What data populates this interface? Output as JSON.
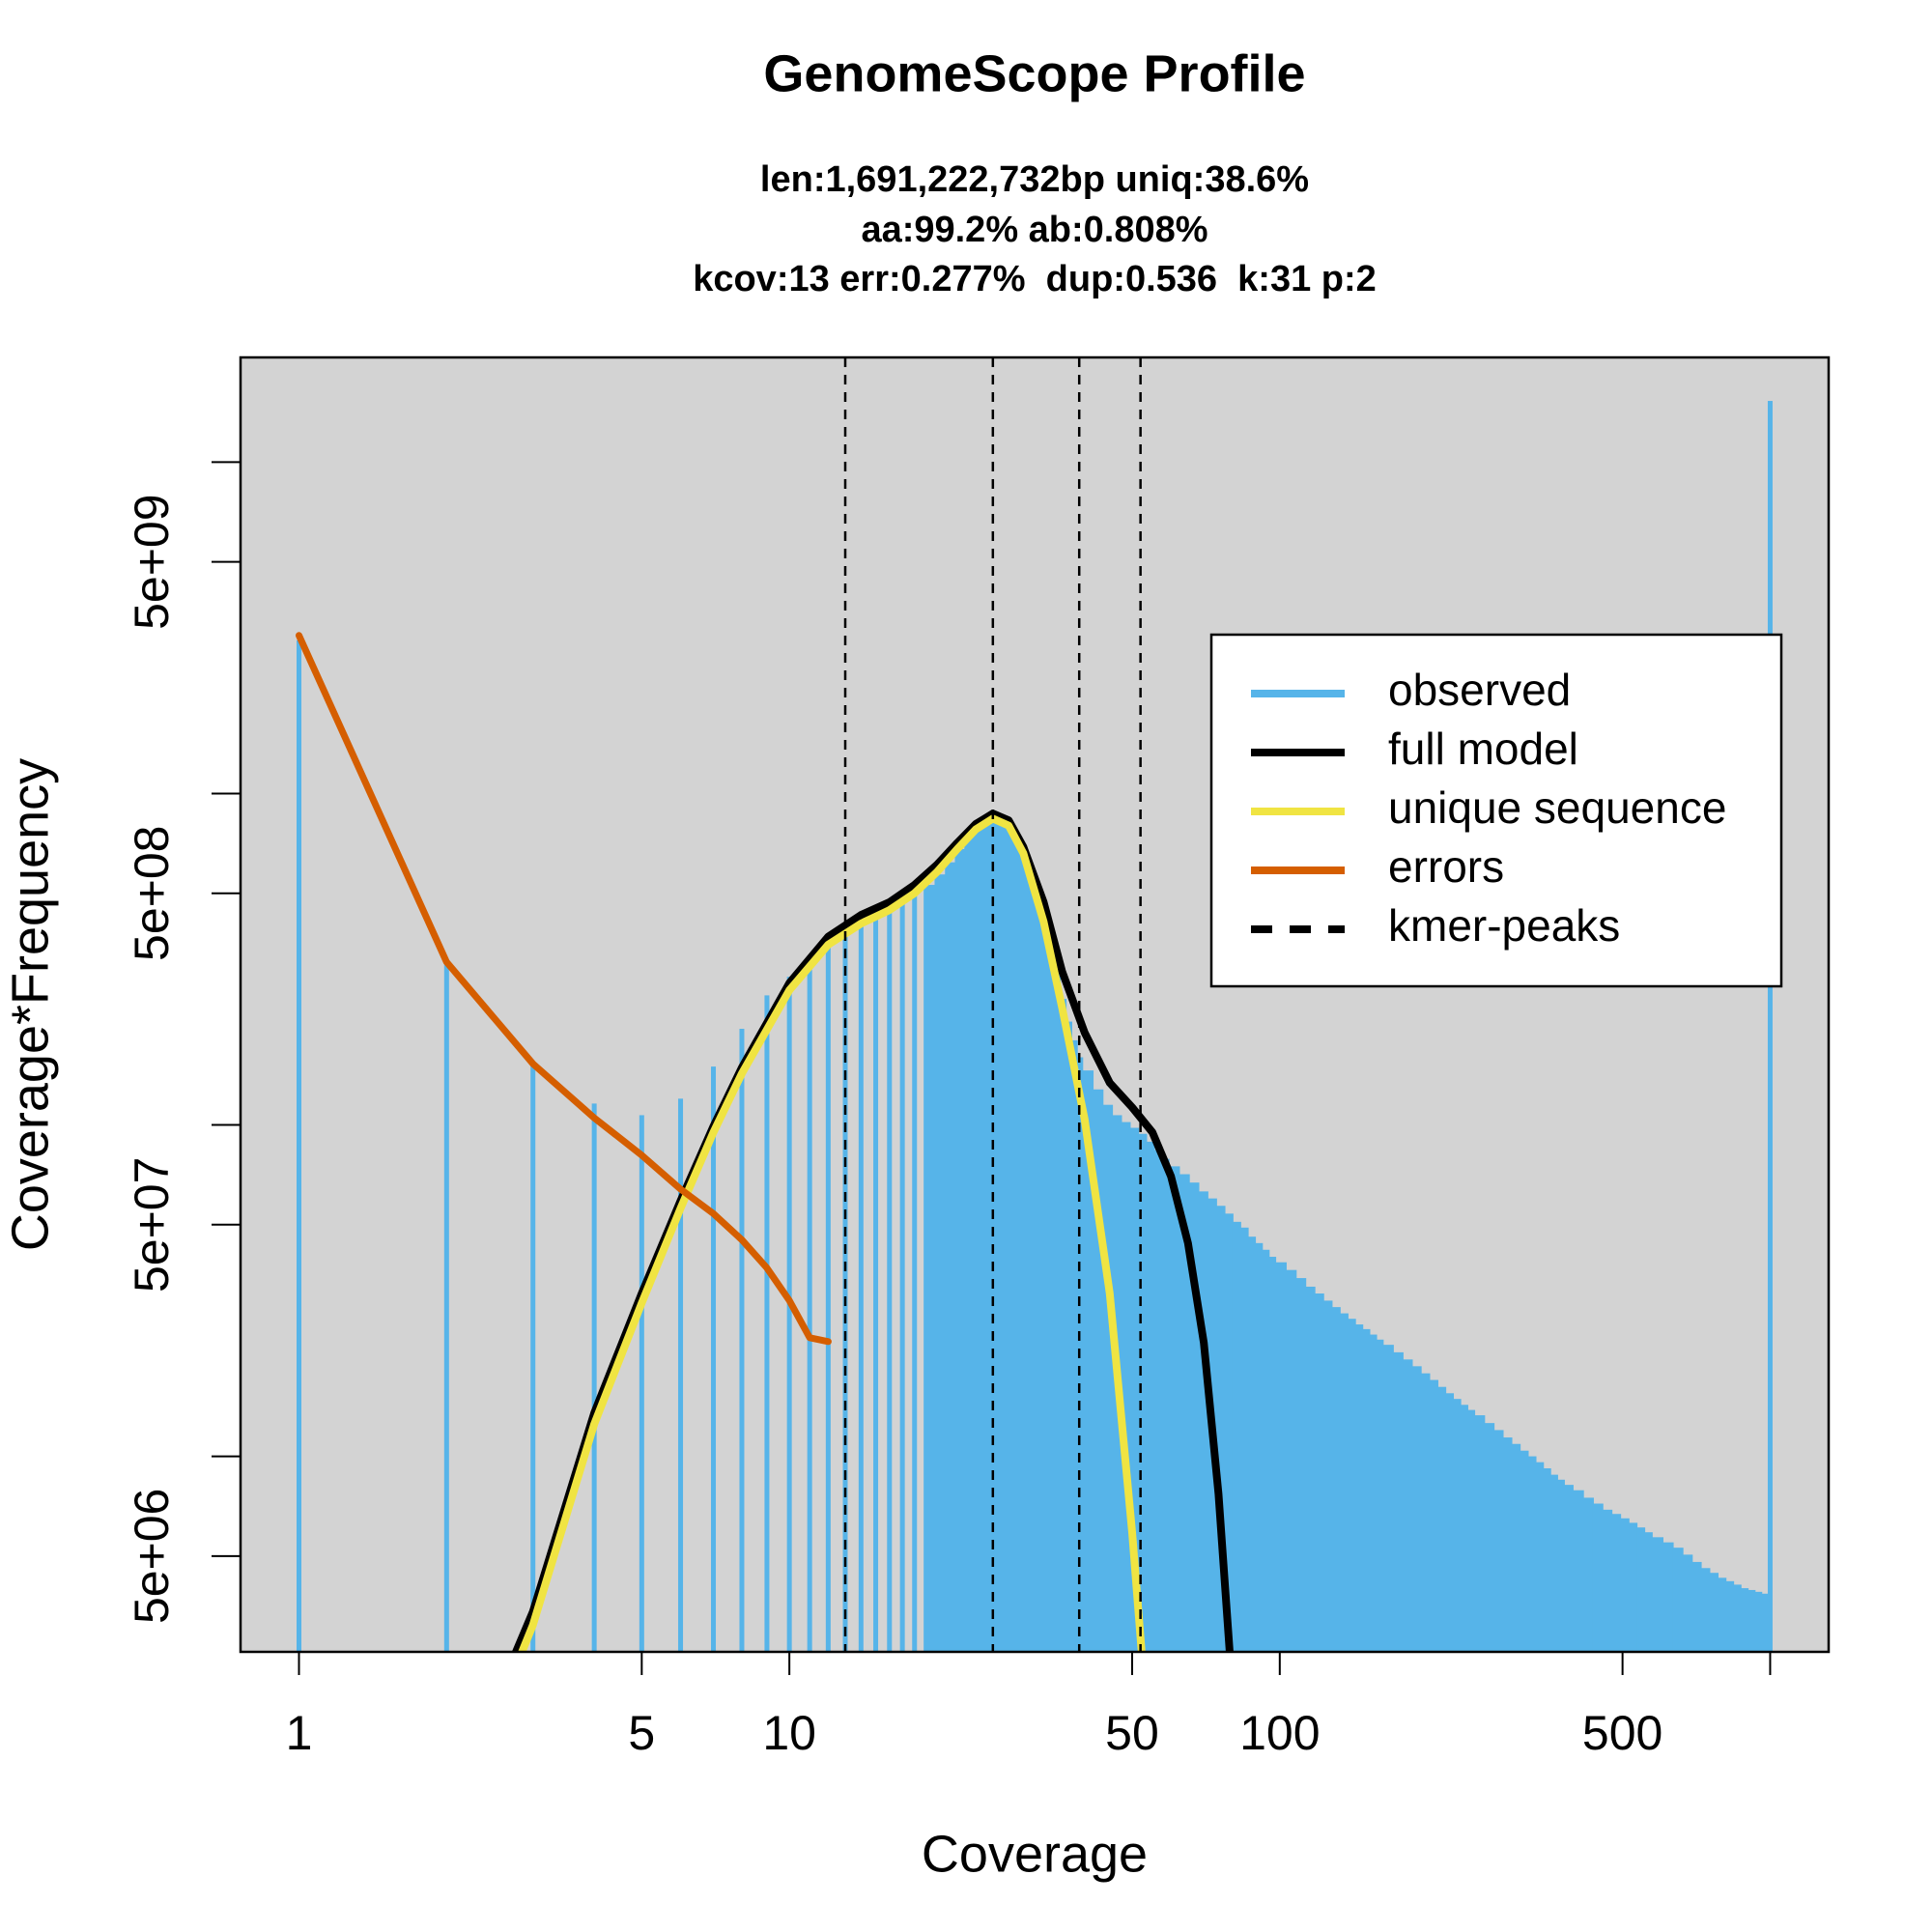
{
  "chart_data": {
    "type": "combo",
    "title": "GenomeScope Profile",
    "subtitle": [
      "len:1,691,222,732bp uniq:38.6%",
      "aa:99.2% ab:0.808%",
      "kcov:13 err:0.277%  dup:0.536  k:31 p:2"
    ],
    "x_label": "Coverage",
    "y_label": "Coverage*Frequency",
    "xlog": true,
    "ylog": true,
    "background": "#d3d3d3",
    "legend_position": "topright",
    "xlim": [
      0.76,
      1316
    ],
    "ylim": [
      2570000,
      20700000000
    ],
    "xticks": [
      1,
      5,
      10,
      50,
      100,
      500,
      {
        "value": 1000,
        "label": null
      }
    ],
    "yticks": [
      {
        "value": 5000000,
        "label": "5e+06"
      },
      {
        "value": 10000000,
        "label": null
      },
      {
        "value": 50000000,
        "label": "5e+07"
      },
      {
        "value": 100000000,
        "label": null
      },
      {
        "value": 500000000,
        "label": "5e+08"
      },
      {
        "value": 1000000000,
        "label": null
      },
      {
        "value": 5000000000,
        "label": "5e+09"
      },
      {
        "value": 10000000000,
        "label": null
      }
    ],
    "series": [
      {
        "name": "observed",
        "type": "bar",
        "color": "#56b4e9",
        "x": [
          1,
          2,
          3,
          4,
          5,
          6,
          7,
          8,
          9,
          10,
          11,
          12,
          13,
          14,
          15,
          16,
          17,
          18,
          19,
          20,
          21,
          22,
          23,
          24,
          25,
          26,
          27,
          28,
          29,
          30,
          31,
          32,
          33,
          34,
          35,
          36,
          37,
          38,
          39,
          40,
          42,
          44,
          46,
          48,
          50,
          52,
          54,
          56,
          58,
          60,
          63,
          66,
          69,
          72,
          75,
          78,
          81,
          84,
          87,
          90,
          93,
          96,
          99,
          104,
          109,
          114,
          119,
          124,
          129,
          134,
          139,
          144,
          149,
          154,
          159,
          164,
          172,
          180,
          188,
          196,
          204,
          212,
          220,
          228,
          236,
          244,
          252,
          264,
          276,
          288,
          300,
          312,
          324,
          336,
          348,
          360,
          372,
          384,
          400,
          420,
          440,
          460,
          480,
          500,
          520,
          540,
          560,
          580,
          610,
          640,
          670,
          700,
          730,
          760,
          790,
          820,
          850,
          880,
          910,
          940,
          970,
          1000
        ],
        "values": [
          2900000000,
          310000000,
          153000000,
          116000000,
          107000000,
          120000000,
          150000000,
          195000000,
          246000000,
          280000000,
          305000000,
          357000000,
          395000000,
          405000000,
          420000000,
          440000000,
          465000000,
          495000000,
          530000000,
          570000000,
          620000000,
          680000000,
          740000000,
          790000000,
          830000000,
          850000000,
          840000000,
          800000000,
          730000000,
          650000000,
          560000000,
          480000000,
          410000000,
          340000000,
          290000000,
          240000000,
          205000000,
          180000000,
          160000000,
          146000000,
          128000000,
          115000000,
          107000000,
          102000000,
          98000000,
          94000000,
          89000000,
          84000000,
          79000000,
          75000000,
          71000000,
          67000000,
          63000000,
          60000000,
          57000000,
          54000000,
          51000000,
          49000000,
          46000000,
          44000000,
          42000000,
          40000000,
          38500000,
          36500000,
          34500000,
          32500000,
          31000000,
          29500000,
          28200000,
          27000000,
          26000000,
          25000000,
          24200000,
          23300000,
          22500000,
          21700000,
          20600000,
          19600000,
          18700000,
          17800000,
          17000000,
          16200000,
          15500000,
          14900000,
          14300000,
          13800000,
          13300000,
          12600000,
          12000000,
          11400000,
          10900000,
          10400000,
          10000000,
          9600000,
          9200000,
          8800000,
          8500000,
          8200000,
          7900000,
          7500000,
          7200000,
          6900000,
          6700000,
          6500000,
          6300000,
          6100000,
          5900000,
          5700000,
          5500000,
          5300000,
          5050000,
          4800000,
          4600000,
          4450000,
          4300000,
          4200000,
          4100000,
          4000000,
          3950000,
          3900000,
          3850000,
          15300000000
        ]
      },
      {
        "name": "full model",
        "type": "line",
        "color": "#000000",
        "x": [
          2.77,
          3,
          4,
          5,
          6,
          7,
          8,
          10,
          12,
          14,
          16,
          18,
          20,
          22,
          24,
          26,
          28,
          30,
          33,
          36,
          40,
          45,
          50,
          55,
          60,
          65,
          70,
          75,
          80
        ],
        "values": [
          2570000,
          3400000,
          13500000,
          31000000,
          59000000,
          99000000,
          149000000,
          268000000,
          370000000,
          430000000,
          470000000,
          530000000,
          610000000,
          710000000,
          810000000,
          870000000,
          830000000,
          690000000,
          470000000,
          290000000,
          190000000,
          134000000,
          113000000,
          95000000,
          70000000,
          44000000,
          22000000,
          7700000,
          2000000
        ]
      },
      {
        "name": "unique sequence",
        "type": "line",
        "color": "#f0e442",
        "x": [
          2.85,
          3,
          4,
          5,
          6,
          7,
          8,
          10,
          12,
          14,
          16,
          18,
          20,
          22,
          24,
          26,
          28,
          30,
          33,
          36,
          40,
          45,
          50,
          53
        ],
        "values": [
          2570000,
          3100000,
          12500000,
          29000000,
          56000000,
          95000000,
          143000000,
          255000000,
          350000000,
          405000000,
          445000000,
          500000000,
          580000000,
          680000000,
          780000000,
          840000000,
          800000000,
          660000000,
          410000000,
          225000000,
          104000000,
          31000000,
          5900000,
          2000000
        ]
      },
      {
        "name": "errors",
        "type": "line",
        "color": "#d55e00",
        "x": [
          1,
          2,
          3,
          4,
          5,
          6,
          7,
          8,
          9,
          10,
          11,
          12
        ],
        "values": [
          3000000000,
          310000000,
          153000000,
          105000000,
          81000000,
          64000000,
          54000000,
          45000000,
          37000000,
          29500000,
          22800000,
          22200000
        ]
      }
    ],
    "kmer_peaks": {
      "name": "kmer-peaks",
      "color": "#000000",
      "x": [
        13,
        26,
        39,
        52
      ]
    }
  }
}
